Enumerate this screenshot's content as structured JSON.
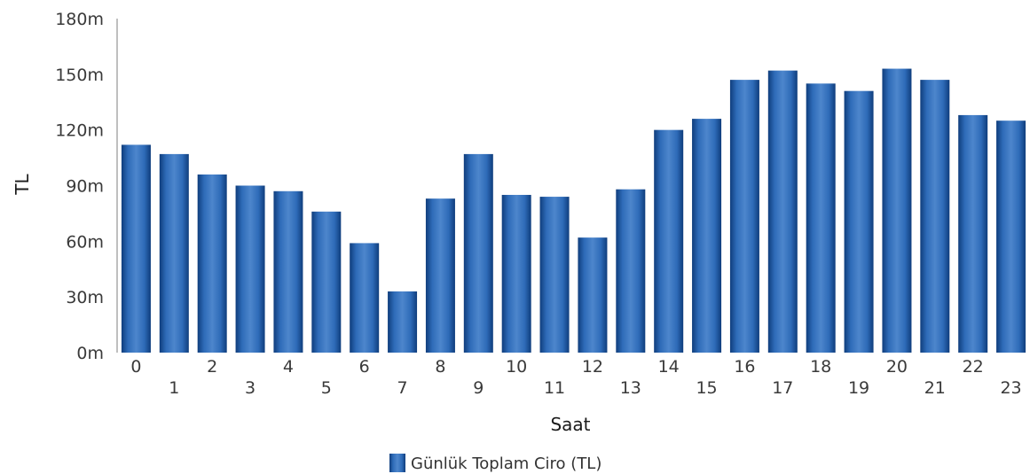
{
  "chart_data": {
    "type": "bar",
    "xlabel": "Saat",
    "ylabel": "TL",
    "categories": [
      "0",
      "1",
      "2",
      "3",
      "4",
      "5",
      "6",
      "7",
      "8",
      "9",
      "10",
      "11",
      "12",
      "13",
      "14",
      "15",
      "16",
      "17",
      "18",
      "19",
      "20",
      "21",
      "22",
      "23"
    ],
    "series": [
      {
        "name": "Günlük Toplam Ciro (TL)",
        "values": [
          112,
          107,
          96,
          90,
          87,
          76,
          59,
          33,
          83,
          107,
          85,
          84,
          62,
          88,
          120,
          126,
          147,
          152,
          145,
          141,
          153,
          147,
          128,
          125
        ]
      }
    ],
    "unit_suffix": "m",
    "ylim": [
      0,
      180
    ],
    "yticks": [
      0,
      30,
      60,
      90,
      120,
      150,
      180
    ],
    "ytick_labels": [
      "0m",
      "30m",
      "60m",
      "90m",
      "120m",
      "150m",
      "180m"
    ],
    "grid": false,
    "legend_position": "bottom",
    "bar_color": "#1f5aa6"
  }
}
